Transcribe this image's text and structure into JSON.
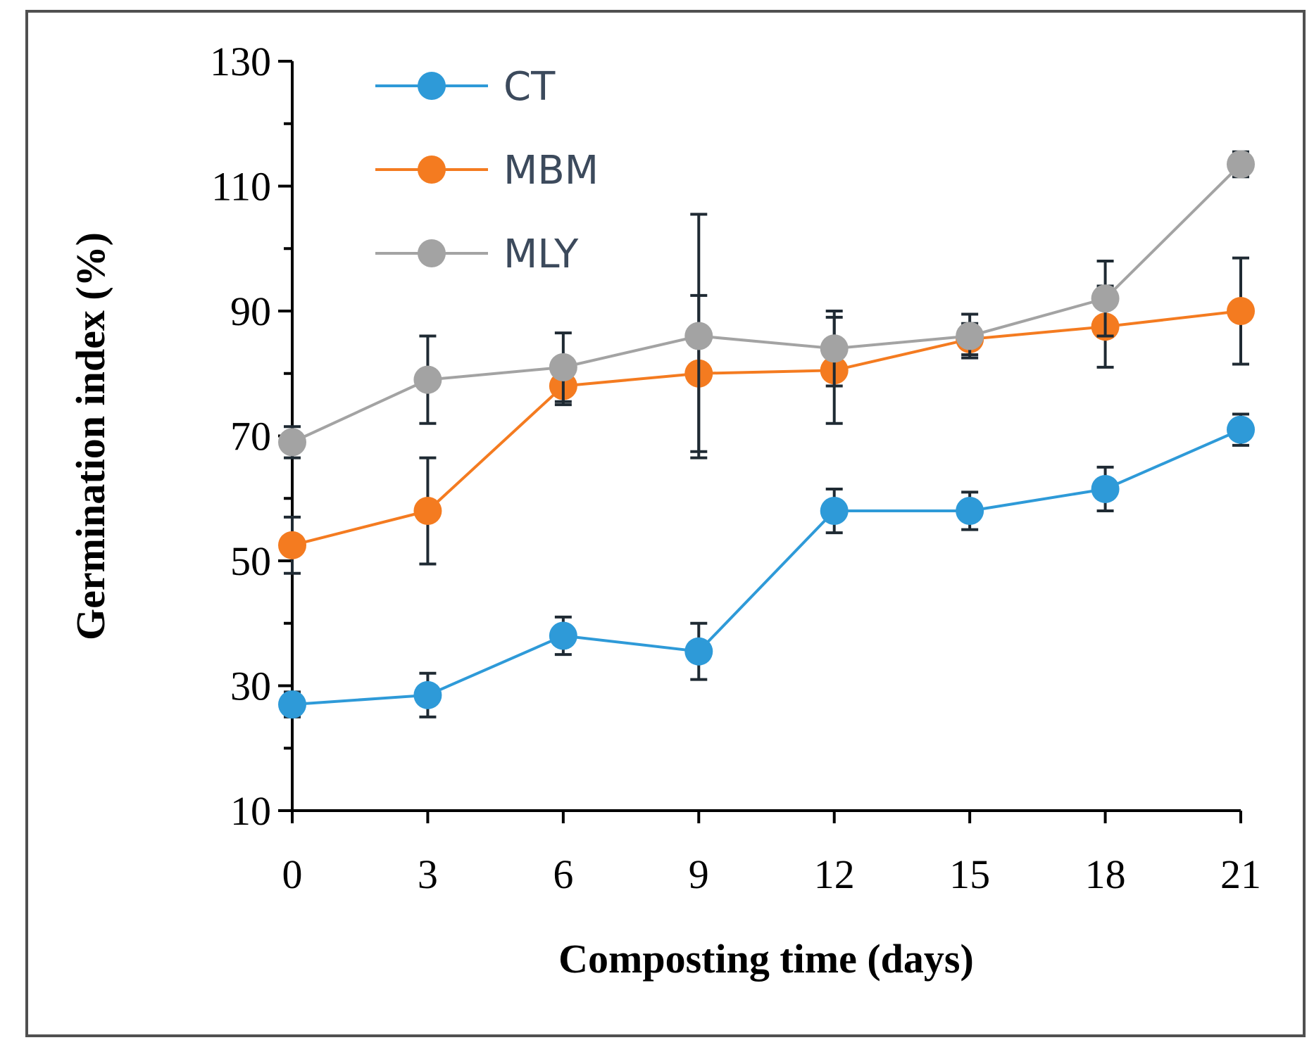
{
  "chart_data": {
    "type": "line",
    "xlabel": "Composting time (days)",
    "ylabel": "Germination index (%)",
    "x": [
      0,
      3,
      6,
      9,
      12,
      15,
      18,
      21
    ],
    "x_ticks": [
      "0",
      "3",
      "6",
      "9",
      "12",
      "15",
      "18",
      "21"
    ],
    "y_ticks": [
      "10",
      "30",
      "50",
      "70",
      "90",
      "110",
      "130"
    ],
    "ylim": [
      10,
      130
    ],
    "legend_position": "top-left",
    "series": [
      {
        "name": "CT",
        "color": "#2e9ad8",
        "values": [
          27,
          28.5,
          38,
          35.5,
          58,
          58,
          61.5,
          71
        ],
        "errors": [
          2,
          3.5,
          3,
          4.5,
          3.5,
          3,
          3.5,
          2.5
        ]
      },
      {
        "name": "MBM",
        "color": "#f47b20",
        "values": [
          52.5,
          58,
          78,
          80,
          80.5,
          85.5,
          87.5,
          90
        ],
        "errors": [
          4.5,
          8.5,
          3,
          12.5,
          8.5,
          2.5,
          6.5,
          8.5
        ]
      },
      {
        "name": "MLY",
        "color": "#a3a3a3",
        "values": [
          69,
          79,
          81,
          86,
          84,
          86,
          92,
          113.5
        ],
        "errors": [
          2.5,
          7,
          5.5,
          19.5,
          6,
          3.5,
          6,
          2
        ]
      }
    ]
  }
}
